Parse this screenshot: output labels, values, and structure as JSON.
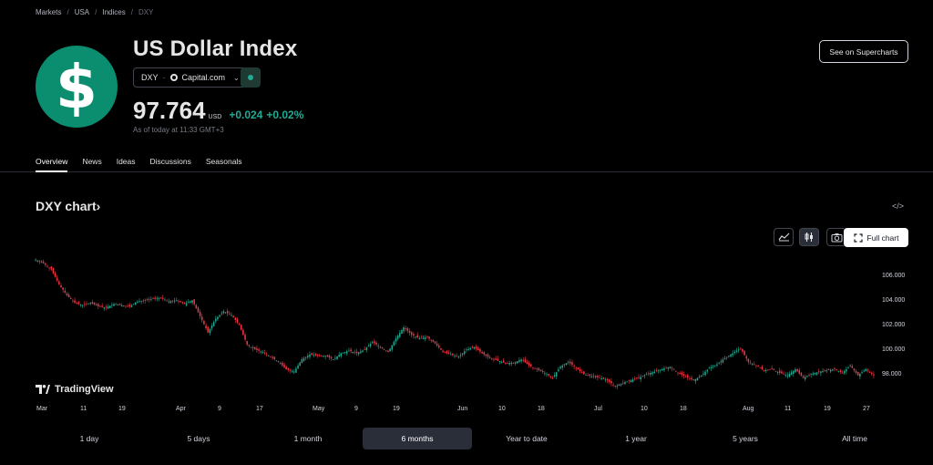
{
  "breadcrumb": [
    "Markets",
    "USA",
    "Indices",
    "DXY"
  ],
  "header": {
    "logo_symbol": "$",
    "title": "US Dollar Index",
    "ticker": "DXY",
    "exchange": "Capital.com",
    "price": "97.764",
    "currency": "USD",
    "change": "+0.024",
    "change_pct": "+0.02%",
    "as_of": "As of today at 11:33 GMT+3",
    "supercharts_label": "See on Supercharts",
    "accent_color": "#0b8d6f",
    "positive_color": "#22ab94"
  },
  "tabs": [
    {
      "label": "Overview",
      "active": true
    },
    {
      "label": "News",
      "active": false
    },
    {
      "label": "Ideas",
      "active": false
    },
    {
      "label": "Discussions",
      "active": false
    },
    {
      "label": "Seasonals",
      "active": false
    }
  ],
  "chart_section": {
    "heading": "DXY chart",
    "heading_chevron": "›",
    "embed_icon": "</>",
    "full_chart_label": "Full chart",
    "tools": [
      "area-chart-icon",
      "candles-icon",
      "camera-icon"
    ],
    "watermark": "TradingView"
  },
  "chart_data": {
    "type": "line",
    "style": "candlestick",
    "x_tick_labels": [
      "Mar",
      "11",
      "19",
      "Apr",
      "9",
      "17",
      "May",
      "9",
      "19",
      "Jun",
      "10",
      "18",
      "Jul",
      "10",
      "18",
      "Aug",
      "11",
      "19",
      "27"
    ],
    "y_tick_labels": [
      "106.000",
      "104.000",
      "102.000",
      "100.000",
      "98.000"
    ],
    "ylim": [
      97.0,
      107.0
    ],
    "grid": false,
    "up_color": "#22ab94",
    "down_color": "#f23645",
    "series": [
      {
        "values": [
          107.2,
          106.9,
          106.4,
          105.2,
          104.3,
          103.7,
          103.5,
          103.7,
          103.4,
          103.3,
          103.6,
          103.5,
          103.4,
          103.8,
          103.9,
          104.0,
          104.1,
          103.8,
          103.9,
          103.6,
          103.9,
          102.6,
          101.3,
          102.4,
          103.0,
          102.7,
          101.9,
          100.3,
          99.9,
          99.7,
          99.3,
          98.9,
          98.3,
          98.1,
          99.1,
          99.5,
          99.4,
          99.4,
          99.1,
          99.6,
          99.8,
          99.6,
          99.9,
          100.5,
          100.1,
          99.7,
          100.8,
          101.7,
          101.1,
          100.8,
          100.9,
          100.4,
          99.7,
          99.5,
          99.3,
          99.9,
          100.1,
          99.6,
          99.2,
          99.0,
          98.8,
          98.8,
          99.1,
          98.6,
          98.3,
          98.0,
          97.6,
          98.5,
          98.9,
          98.4,
          97.9,
          97.7,
          97.6,
          97.4,
          96.9,
          97.2,
          97.4,
          97.6,
          97.9,
          98.1,
          98.3,
          98.5,
          98.0,
          97.7,
          97.4,
          97.8,
          98.4,
          98.7,
          99.2,
          99.6,
          100.0,
          98.9,
          98.6,
          98.2,
          98.3,
          98.0,
          97.8,
          98.3,
          97.6,
          97.9,
          98.1,
          98.2,
          98.3,
          98.0,
          98.6,
          97.8,
          98.3,
          97.8
        ]
      }
    ]
  },
  "time_ranges": [
    {
      "label": "1 day",
      "active": false
    },
    {
      "label": "5 days",
      "active": false
    },
    {
      "label": "1 month",
      "active": false
    },
    {
      "label": "6 months",
      "active": true
    },
    {
      "label": "Year to date",
      "active": false
    },
    {
      "label": "1 year",
      "active": false
    },
    {
      "label": "5 years",
      "active": false
    },
    {
      "label": "All time",
      "active": false
    }
  ]
}
